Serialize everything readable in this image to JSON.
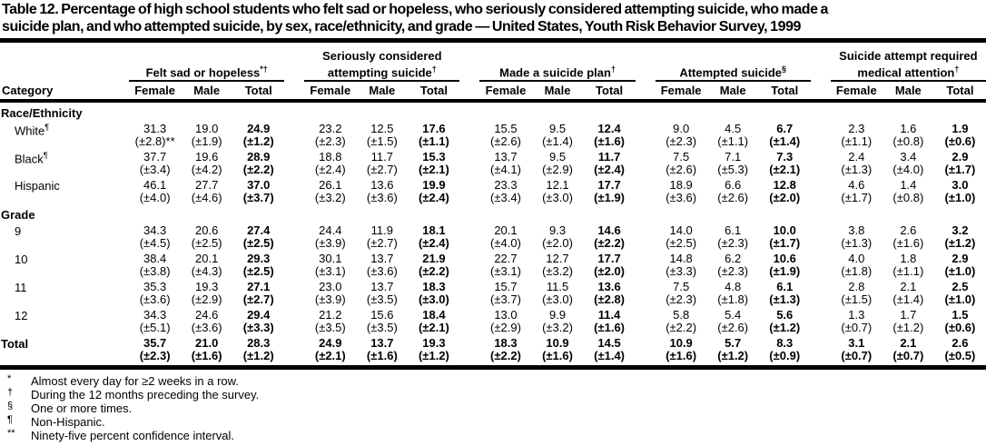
{
  "title": {
    "line1": "Table 12. Percentage of high school students who felt sad or hopeless, who seriously considered attempting suicide, who made a",
    "line2": "suicide plan, and who attempted suicide, by sex, race/ethnicity, and grade — United States, Youth Risk Behavior Survey, 1999"
  },
  "table": {
    "category_header": "Category",
    "sub_headers": [
      "Female",
      "Male",
      "Total"
    ],
    "groups": [
      {
        "label": "Felt sad or hopeless",
        "sup": "*†"
      },
      {
        "label": "Seriously considered attempting suicide",
        "sup": "†"
      },
      {
        "label": "Made a suicide plan",
        "sup": "†"
      },
      {
        "label": "Attempted suicide",
        "sup": "§"
      },
      {
        "label": "Suicide attempt required medical attention",
        "sup": "†"
      }
    ],
    "sections": [
      {
        "label": "Race/Ethnicity",
        "rows": [
          {
            "label": "White",
            "sup": "¶",
            "cells": [
              {
                "v": "31.3",
                "ci": "(±2.8)**"
              },
              {
                "v": "19.0",
                "ci": "(±1.9)"
              },
              {
                "v": "24.9",
                "ci": "(±1.2)"
              },
              {
                "v": "23.2",
                "ci": "(±2.3)"
              },
              {
                "v": "12.5",
                "ci": "(±1.5)"
              },
              {
                "v": "17.6",
                "ci": "(±1.1)"
              },
              {
                "v": "15.5",
                "ci": "(±2.6)"
              },
              {
                "v": "9.5",
                "ci": "(±1.4)"
              },
              {
                "v": "12.4",
                "ci": "(±1.6)"
              },
              {
                "v": "9.0",
                "ci": "(±2.3)"
              },
              {
                "v": "4.5",
                "ci": "(±1.1)"
              },
              {
                "v": "6.7",
                "ci": "(±1.4)"
              },
              {
                "v": "2.3",
                "ci": "(±1.1)"
              },
              {
                "v": "1.6",
                "ci": "(±0.8)"
              },
              {
                "v": "1.9",
                "ci": "(±0.6)"
              }
            ]
          },
          {
            "label": "Black",
            "sup": "¶",
            "cells": [
              {
                "v": "37.7",
                "ci": "(±3.4)"
              },
              {
                "v": "19.6",
                "ci": "(±4.2)"
              },
              {
                "v": "28.9",
                "ci": "(±2.2)"
              },
              {
                "v": "18.8",
                "ci": "(±2.4)"
              },
              {
                "v": "11.7",
                "ci": "(±2.7)"
              },
              {
                "v": "15.3",
                "ci": "(±2.1)"
              },
              {
                "v": "13.7",
                "ci": "(±4.1)"
              },
              {
                "v": "9.5",
                "ci": "(±2.9)"
              },
              {
                "v": "11.7",
                "ci": "(±2.4)"
              },
              {
                "v": "7.5",
                "ci": "(±2.6)"
              },
              {
                "v": "7.1",
                "ci": "(±5.3)"
              },
              {
                "v": "7.3",
                "ci": "(±2.1)"
              },
              {
                "v": "2.4",
                "ci": "(±1.3)"
              },
              {
                "v": "3.4",
                "ci": "(±4.0)"
              },
              {
                "v": "2.9",
                "ci": "(±1.7)"
              }
            ]
          },
          {
            "label": "Hispanic",
            "sup": "",
            "cells": [
              {
                "v": "46.1",
                "ci": "(±4.0)"
              },
              {
                "v": "27.7",
                "ci": "(±4.6)"
              },
              {
                "v": "37.0",
                "ci": "(±3.7)"
              },
              {
                "v": "26.1",
                "ci": "(±3.2)"
              },
              {
                "v": "13.6",
                "ci": "(±3.6)"
              },
              {
                "v": "19.9",
                "ci": "(±2.4)"
              },
              {
                "v": "23.3",
                "ci": "(±3.4)"
              },
              {
                "v": "12.1",
                "ci": "(±3.0)"
              },
              {
                "v": "17.7",
                "ci": "(±1.9)"
              },
              {
                "v": "18.9",
                "ci": "(±3.6)"
              },
              {
                "v": "6.6",
                "ci": "(±2.6)"
              },
              {
                "v": "12.8",
                "ci": "(±2.0)"
              },
              {
                "v": "4.6",
                "ci": "(±1.7)"
              },
              {
                "v": "1.4",
                "ci": "(±0.8)"
              },
              {
                "v": "3.0",
                "ci": "(±1.0)"
              }
            ]
          }
        ]
      },
      {
        "label": "Grade",
        "rows": [
          {
            "label": "9",
            "sup": "",
            "cells": [
              {
                "v": "34.3",
                "ci": "(±4.5)"
              },
              {
                "v": "20.6",
                "ci": "(±2.5)"
              },
              {
                "v": "27.4",
                "ci": "(±2.5)"
              },
              {
                "v": "24.4",
                "ci": "(±3.9)"
              },
              {
                "v": "11.9",
                "ci": "(±2.7)"
              },
              {
                "v": "18.1",
                "ci": "(±2.4)"
              },
              {
                "v": "20.1",
                "ci": "(±4.0)"
              },
              {
                "v": "9.3",
                "ci": "(±2.0)"
              },
              {
                "v": "14.6",
                "ci": "(±2.2)"
              },
              {
                "v": "14.0",
                "ci": "(±2.5)"
              },
              {
                "v": "6.1",
                "ci": "(±2.3)"
              },
              {
                "v": "10.0",
                "ci": "(±1.7)"
              },
              {
                "v": "3.8",
                "ci": "(±1.3)"
              },
              {
                "v": "2.6",
                "ci": "(±1.6)"
              },
              {
                "v": "3.2",
                "ci": "(±1.2)"
              }
            ]
          },
          {
            "label": "10",
            "sup": "",
            "cells": [
              {
                "v": "38.4",
                "ci": "(±3.8)"
              },
              {
                "v": "20.1",
                "ci": "(±4.3)"
              },
              {
                "v": "29.3",
                "ci": "(±2.5)"
              },
              {
                "v": "30.1",
                "ci": "(±3.1)"
              },
              {
                "v": "13.7",
                "ci": "(±3.6)"
              },
              {
                "v": "21.9",
                "ci": "(±2.2)"
              },
              {
                "v": "22.7",
                "ci": "(±3.1)"
              },
              {
                "v": "12.7",
                "ci": "(±3.2)"
              },
              {
                "v": "17.7",
                "ci": "(±2.0)"
              },
              {
                "v": "14.8",
                "ci": "(±3.3)"
              },
              {
                "v": "6.2",
                "ci": "(±2.3)"
              },
              {
                "v": "10.6",
                "ci": "(±1.9)"
              },
              {
                "v": "4.0",
                "ci": "(±1.8)"
              },
              {
                "v": "1.8",
                "ci": "(±1.1)"
              },
              {
                "v": "2.9",
                "ci": "(±1.0)"
              }
            ]
          },
          {
            "label": "11",
            "sup": "",
            "cells": [
              {
                "v": "35.3",
                "ci": "(±3.6)"
              },
              {
                "v": "19.3",
                "ci": "(±2.9)"
              },
              {
                "v": "27.1",
                "ci": "(±2.7)"
              },
              {
                "v": "23.0",
                "ci": "(±3.9)"
              },
              {
                "v": "13.7",
                "ci": "(±3.5)"
              },
              {
                "v": "18.3",
                "ci": "(±3.0)"
              },
              {
                "v": "15.7",
                "ci": "(±3.7)"
              },
              {
                "v": "11.5",
                "ci": "(±3.0)"
              },
              {
                "v": "13.6",
                "ci": "(±2.8)"
              },
              {
                "v": "7.5",
                "ci": "(±2.3)"
              },
              {
                "v": "4.8",
                "ci": "(±1.8)"
              },
              {
                "v": "6.1",
                "ci": "(±1.3)"
              },
              {
                "v": "2.8",
                "ci": "(±1.5)"
              },
              {
                "v": "2.1",
                "ci": "(±1.4)"
              },
              {
                "v": "2.5",
                "ci": "(±1.0)"
              }
            ]
          },
          {
            "label": "12",
            "sup": "",
            "cells": [
              {
                "v": "34.3",
                "ci": "(±5.1)"
              },
              {
                "v": "24.6",
                "ci": "(±3.6)"
              },
              {
                "v": "29.4",
                "ci": "(±3.3)"
              },
              {
                "v": "21.2",
                "ci": "(±3.5)"
              },
              {
                "v": "15.6",
                "ci": "(±3.5)"
              },
              {
                "v": "18.4",
                "ci": "(±2.1)"
              },
              {
                "v": "13.0",
                "ci": "(±2.9)"
              },
              {
                "v": "9.9",
                "ci": "(±3.2)"
              },
              {
                "v": "11.4",
                "ci": "(±1.6)"
              },
              {
                "v": "5.8",
                "ci": "(±2.2)"
              },
              {
                "v": "5.4",
                "ci": "(±2.6)"
              },
              {
                "v": "5.6",
                "ci": "(±1.2)"
              },
              {
                "v": "1.3",
                "ci": "(±0.7)"
              },
              {
                "v": "1.7",
                "ci": "(±1.2)"
              },
              {
                "v": "1.5",
                "ci": "(±0.6)"
              }
            ]
          }
        ]
      }
    ],
    "total_row": {
      "label": "Total",
      "sup": "",
      "cells": [
        {
          "v": "35.7",
          "ci": "(±2.3)"
        },
        {
          "v": "21.0",
          "ci": "(±1.6)"
        },
        {
          "v": "28.3",
          "ci": "(±1.2)"
        },
        {
          "v": "24.9",
          "ci": "(±2.1)"
        },
        {
          "v": "13.7",
          "ci": "(±1.6)"
        },
        {
          "v": "19.3",
          "ci": "(±1.2)"
        },
        {
          "v": "18.3",
          "ci": "(±2.2)"
        },
        {
          "v": "10.9",
          "ci": "(±1.6)"
        },
        {
          "v": "14.5",
          "ci": "(±1.4)"
        },
        {
          "v": "10.9",
          "ci": "(±1.6)"
        },
        {
          "v": "5.7",
          "ci": "(±1.2)"
        },
        {
          "v": "8.3",
          "ci": "(±0.9)"
        },
        {
          "v": "3.1",
          "ci": "(±0.7)"
        },
        {
          "v": "2.1",
          "ci": "(±0.7)"
        },
        {
          "v": "2.6",
          "ci": "(±0.5)"
        }
      ]
    }
  },
  "footnotes": [
    {
      "marker": "*",
      "text": "Almost every day for ≥2 weeks in a row."
    },
    {
      "marker": "†",
      "text": "During the 12 months preceding the survey."
    },
    {
      "marker": "§",
      "text": "One or more times."
    },
    {
      "marker": "¶",
      "text": "Non-Hispanic."
    },
    {
      "marker": "**",
      "text": "Ninety-five percent confidence interval."
    }
  ]
}
